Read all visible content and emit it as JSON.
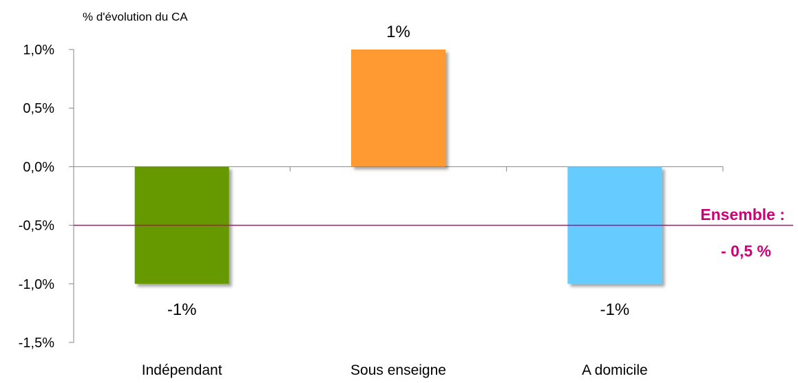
{
  "chart_data": {
    "type": "bar",
    "ylabel": "% d'évolution du CA",
    "categories": [
      "Indépendant",
      "Sous enseigne",
      "A domicile"
    ],
    "values": [
      -1,
      1,
      -1
    ],
    "data_labels": [
      "-1%",
      "1%",
      "-1%"
    ],
    "colors": [
      "#669900",
      "#ff9933",
      "#66ccff"
    ],
    "ylim": [
      -1.5,
      1.0
    ],
    "yticks": [
      {
        "value": 1.0,
        "label": "1,0%"
      },
      {
        "value": 0.5,
        "label": "0,5%"
      },
      {
        "value": 0.0,
        "label": "0,0%"
      },
      {
        "value": -0.5,
        "label": "-0,5%"
      },
      {
        "value": -1.0,
        "label": "-1,0%"
      },
      {
        "value": -1.5,
        "label": "-1,5%"
      }
    ],
    "reference_line": {
      "value": -0.5,
      "label_line1": "Ensemble :",
      "label_line2": "- 0,5 %",
      "color": "#cc0077"
    },
    "grid": false,
    "legend": "none"
  }
}
